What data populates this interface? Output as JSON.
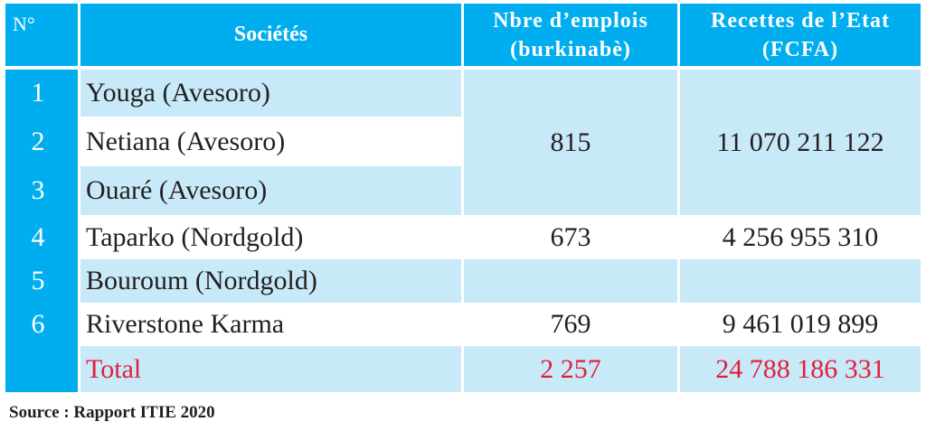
{
  "table": {
    "headers": {
      "number": "N°",
      "company": "Sociétés",
      "jobs_line1": "Nbre d’emplois",
      "jobs_line2": "(burkinabè)",
      "revenue_line1": "Recettes de l’Etat",
      "revenue_line2": "(FCFA)"
    },
    "rows": [
      {
        "number": "1",
        "company": "Youga (Avesoro)"
      },
      {
        "number": "2",
        "company": "Netiana (Avesoro)"
      },
      {
        "number": "3",
        "company": "Ouaré (Avesoro)"
      },
      {
        "number": "4",
        "company": "Taparko (Nordgold)"
      },
      {
        "number": "5",
        "company": "Bouroum (Nordgold)"
      },
      {
        "number": "6",
        "company": "Riverstone Karma"
      }
    ],
    "groups": {
      "avesoro": {
        "jobs": "815",
        "revenue": "11 070 211 122"
      },
      "taparko": {
        "jobs": "673",
        "revenue": "4 256 955 310"
      },
      "riverstone": {
        "jobs": "769",
        "revenue": "9 461 019 899"
      }
    },
    "total": {
      "label": "Total",
      "jobs": "2 257",
      "revenue": "24 788 186 331"
    }
  },
  "source": "Source : Rapport ITIE 2020",
  "colors": {
    "header_bg": "#00aeef",
    "light_row": "#c8e9f8",
    "total_text": "#e31e3a"
  }
}
